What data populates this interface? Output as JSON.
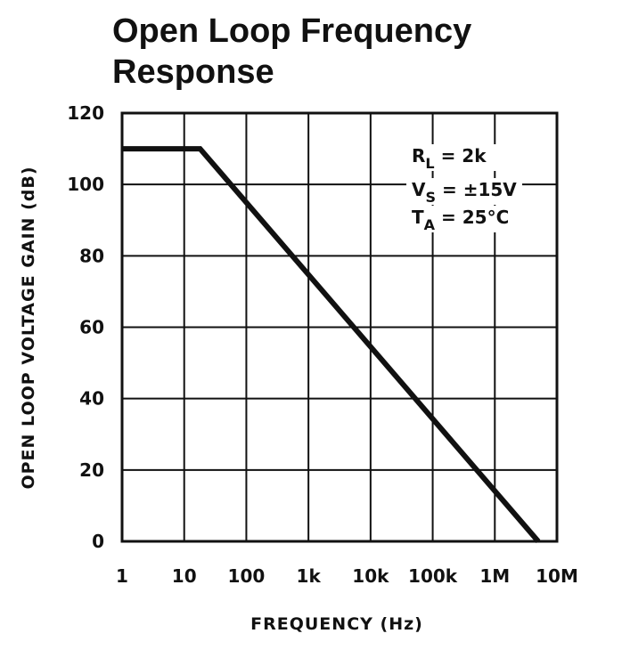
{
  "chart_data": {
    "type": "line",
    "title": "Open Loop Frequency Response",
    "xlabel": "FREQUENCY (Hz)",
    "ylabel": "OPEN LOOP VOLTAGE GAIN (dB)",
    "xscale": "log",
    "x_ticks": [
      "1",
      "10",
      "100",
      "1k",
      "10k",
      "100k",
      "1M",
      "10M"
    ],
    "x_tick_values": [
      1,
      10,
      100,
      1000,
      10000,
      100000,
      1000000,
      10000000
    ],
    "y_ticks": [
      "0",
      "20",
      "40",
      "60",
      "80",
      "100",
      "120"
    ],
    "xlim": [
      1,
      10000000
    ],
    "ylim": [
      0,
      120
    ],
    "grid": true,
    "series": [
      {
        "x": [
          1,
          18,
          5000000
        ],
        "y": [
          110,
          110,
          0
        ]
      }
    ],
    "annotations": [
      {
        "main": "R",
        "sub": "L",
        "rest": " = 2k"
      },
      {
        "main": "V",
        "sub": "S",
        "rest": " = ±15V"
      },
      {
        "main": "T",
        "sub": "A",
        "rest": " = 25°C"
      }
    ]
  }
}
